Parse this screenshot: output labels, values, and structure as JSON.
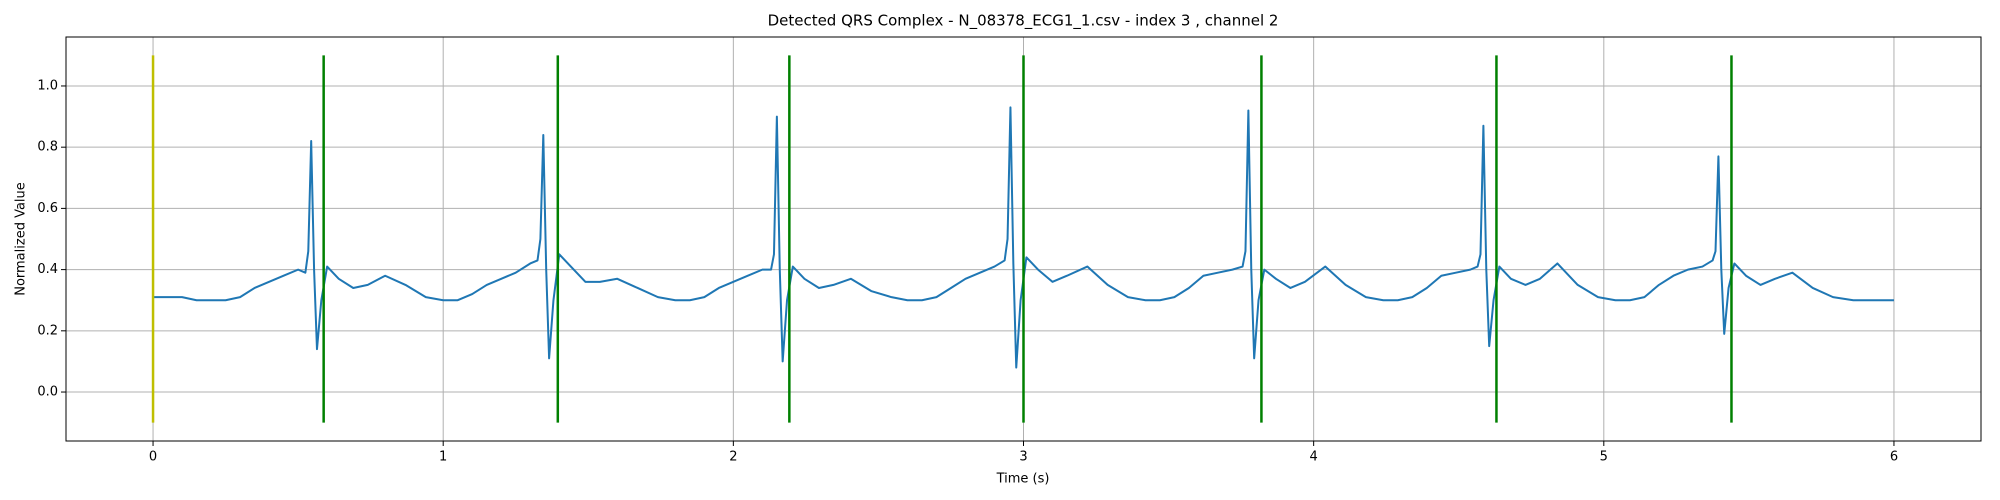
{
  "chart_data": {
    "type": "line",
    "title": "Detected QRS Complex - N_08378_ECG1_1.csv - index 3 , channel 2",
    "x_label": "Time (s)",
    "y_label": "Normalized Value",
    "xlim": [
      -0.3,
      6.3
    ],
    "ylim": [
      -0.16,
      1.16
    ],
    "xticks": [
      0,
      1,
      2,
      3,
      4,
      5,
      6
    ],
    "yticks": [
      {
        "value": 0,
        "label": "0.0"
      },
      0.2,
      0.4,
      0.6,
      0.8,
      {
        "value": 1,
        "label": "1.0"
      }
    ],
    "grid": true,
    "series": [
      {
        "color": "#1f77b4",
        "x": [
          0,
          0.05,
          0.1,
          0.15,
          0.2,
          0.25,
          0.3,
          0.35,
          0.4,
          0.45,
          0.5,
          0.525,
          0.535,
          0.545,
          0.555,
          0.565,
          0.58,
          0.6,
          0.64,
          0.69,
          0.74,
          0.8,
          0.87,
          0.94,
          1.0,
          1.05,
          1.1,
          1.15,
          1.2,
          1.25,
          1.3,
          1.325,
          1.335,
          1.345,
          1.355,
          1.365,
          1.38,
          1.4,
          1.44,
          1.49,
          1.54,
          1.6,
          1.67,
          1.74,
          1.8,
          1.85,
          1.9,
          1.95,
          2.0,
          2.05,
          2.1,
          2.13,
          2.14,
          2.15,
          2.16,
          2.17,
          2.185,
          2.205,
          2.245,
          2.295,
          2.345,
          2.405,
          2.475,
          2.545,
          2.6,
          2.65,
          2.7,
          2.75,
          2.8,
          2.85,
          2.9,
          2.935,
          2.945,
          2.955,
          2.965,
          2.975,
          2.99,
          3.01,
          3.05,
          3.1,
          3.15,
          3.22,
          3.29,
          3.36,
          3.42,
          3.47,
          3.52,
          3.57,
          3.62,
          3.67,
          3.72,
          3.755,
          3.765,
          3.775,
          3.785,
          3.795,
          3.81,
          3.83,
          3.87,
          3.92,
          3.97,
          4.04,
          4.11,
          4.18,
          4.24,
          4.29,
          4.34,
          4.39,
          4.44,
          4.49,
          4.54,
          4.565,
          4.575,
          4.585,
          4.595,
          4.605,
          4.62,
          4.64,
          4.68,
          4.73,
          4.78,
          4.84,
          4.91,
          4.98,
          5.04,
          5.09,
          5.14,
          5.19,
          5.24,
          5.29,
          5.34,
          5.375,
          5.385,
          5.395,
          5.405,
          5.415,
          5.43,
          5.45,
          5.49,
          5.54,
          5.59,
          5.65,
          5.72,
          5.79,
          5.86,
          5.93,
          6.0
        ],
        "values": [
          0.31,
          0.31,
          0.31,
          0.3,
          0.3,
          0.3,
          0.31,
          0.34,
          0.36,
          0.38,
          0.4,
          0.39,
          0.46,
          0.82,
          0.4,
          0.14,
          0.3,
          0.41,
          0.37,
          0.34,
          0.35,
          0.38,
          0.35,
          0.31,
          0.3,
          0.3,
          0.32,
          0.35,
          0.37,
          0.39,
          0.42,
          0.43,
          0.5,
          0.84,
          0.4,
          0.11,
          0.3,
          0.45,
          0.41,
          0.36,
          0.36,
          0.37,
          0.34,
          0.31,
          0.3,
          0.3,
          0.31,
          0.34,
          0.36,
          0.38,
          0.4,
          0.4,
          0.45,
          0.9,
          0.4,
          0.1,
          0.3,
          0.41,
          0.37,
          0.34,
          0.35,
          0.37,
          0.33,
          0.31,
          0.3,
          0.3,
          0.31,
          0.34,
          0.37,
          0.39,
          0.41,
          0.43,
          0.5,
          0.93,
          0.42,
          0.08,
          0.3,
          0.44,
          0.4,
          0.36,
          0.38,
          0.41,
          0.35,
          0.31,
          0.3,
          0.3,
          0.31,
          0.34,
          0.38,
          0.39,
          0.4,
          0.41,
          0.46,
          0.92,
          0.4,
          0.11,
          0.3,
          0.4,
          0.37,
          0.34,
          0.36,
          0.41,
          0.35,
          0.31,
          0.3,
          0.3,
          0.31,
          0.34,
          0.38,
          0.39,
          0.4,
          0.41,
          0.45,
          0.87,
          0.4,
          0.15,
          0.3,
          0.41,
          0.37,
          0.35,
          0.37,
          0.42,
          0.35,
          0.31,
          0.3,
          0.3,
          0.31,
          0.35,
          0.38,
          0.4,
          0.41,
          0.43,
          0.46,
          0.77,
          0.4,
          0.19,
          0.34,
          0.42,
          0.38,
          0.35,
          0.37,
          0.39,
          0.34,
          0.31,
          0.3,
          0.3,
          0.3
        ]
      }
    ],
    "vline_ymin": -0.1,
    "vline_ymax": 1.1,
    "vlines": [
      {
        "x": 0,
        "color": "#bfbf00"
      },
      {
        "x": 0.588,
        "color": "#008000"
      },
      {
        "x": 1.395,
        "color": "#008000"
      },
      {
        "x": 2.193,
        "color": "#008000"
      },
      {
        "x": 3.0,
        "color": "#008000"
      },
      {
        "x": 3.82,
        "color": "#008000"
      },
      {
        "x": 4.63,
        "color": "#008000"
      },
      {
        "x": 5.44,
        "color": "#008000"
      }
    ]
  }
}
